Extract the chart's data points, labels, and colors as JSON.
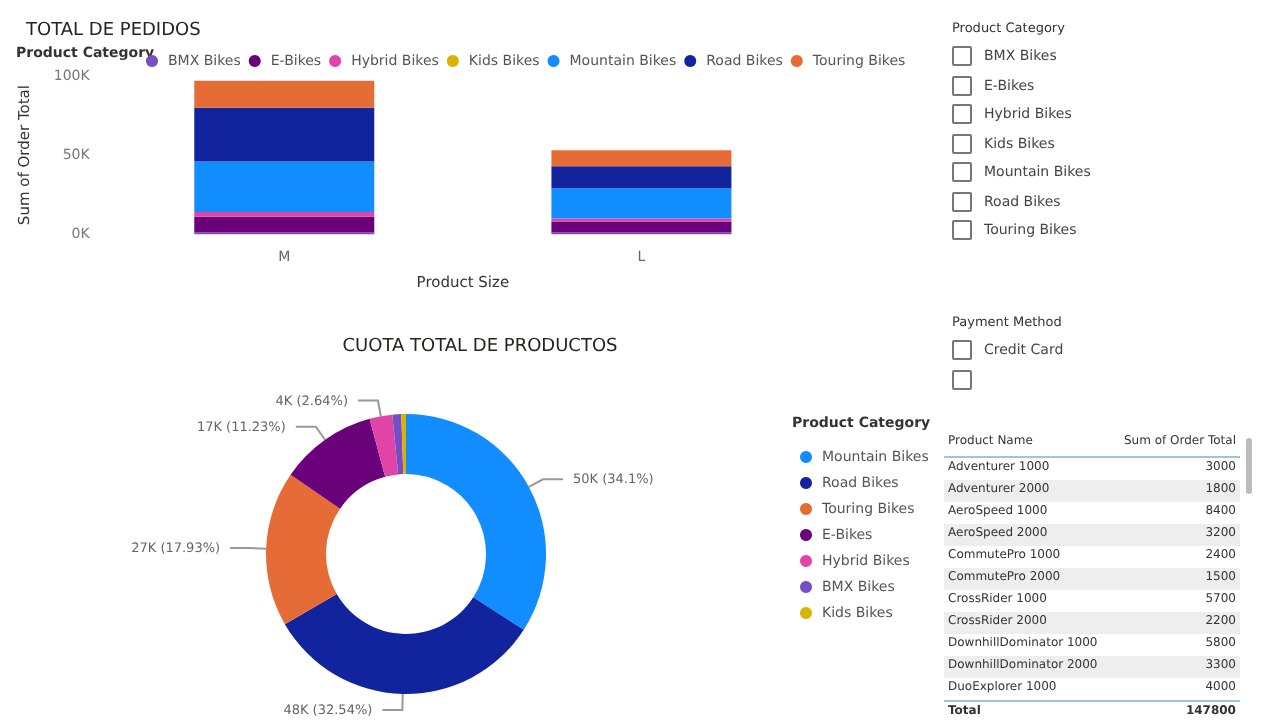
{
  "chart_data": [
    {
      "type": "bar",
      "title": "TOTAL DE PEDIDOS",
      "legend_title": "Product Category",
      "xlabel": "Product Size",
      "ylabel": "Sum of Order Total",
      "categories": [
        "M",
        "L"
      ],
      "stacked": true,
      "ylim": [
        0,
        100000
      ],
      "yticks": [
        {
          "value": 0,
          "label": "0K"
        },
        {
          "value": 50000,
          "label": "50K"
        },
        {
          "value": 100000,
          "label": "100K"
        }
      ],
      "grid": false,
      "legend": "top",
      "series": [
        {
          "name": "BMX Bikes",
          "color": "#744ec2",
          "values": [
            1000,
            1000
          ]
        },
        {
          "name": "E-Bikes",
          "color": "#6b007b",
          "values": [
            10000,
            7000
          ]
        },
        {
          "name": "Hybrid Bikes",
          "color": "#e044a7",
          "values": [
            3000,
            2000
          ]
        },
        {
          "name": "Kids Bikes",
          "color": "#d9b300",
          "values": [
            0,
            0
          ]
        },
        {
          "name": "Mountain Bikes",
          "color": "#118dff",
          "values": [
            32000,
            19000
          ]
        },
        {
          "name": "Road Bikes",
          "color": "#12239e",
          "values": [
            34000,
            14000
          ]
        },
        {
          "name": "Touring Bikes",
          "color": "#e66c37",
          "values": [
            17000,
            10000
          ]
        }
      ]
    },
    {
      "type": "donut",
      "title": "CUOTA TOTAL DE PRODUCTOS",
      "legend_title": "Product Category",
      "legend": "right",
      "categories": [
        "Mountain Bikes",
        "Road Bikes",
        "Touring Bikes",
        "E-Bikes",
        "Hybrid Bikes",
        "BMX Bikes",
        "Kids Bikes"
      ],
      "values": [
        50400,
        48100,
        26500,
        16600,
        3900,
        1500,
        800
      ],
      "value_labels": [
        "50K (34.1%)",
        "48K (32.54%)",
        "27K (17.93%)",
        "17K (11.23%)",
        "4K (2.64%)",
        null,
        null
      ],
      "colors": [
        "#118dff",
        "#12239e",
        "#e66c37",
        "#6b007b",
        "#e044a7",
        "#744ec2",
        "#d9b300"
      ]
    },
    {
      "type": "other",
      "xlabel": "Product Name",
      "ylabel": "Sum of Order Total",
      "categories": [
        "Adventurer 1000",
        "Adventurer 2000",
        "AeroSpeed 1000",
        "AeroSpeed 2000",
        "CommutePro 1000",
        "CommutePro 2000",
        "CrossRider 1000",
        "CrossRider 2000",
        "DownhillDominator 1000",
        "DownhillDominator 2000",
        "DuoExplorer 1000"
      ],
      "values": [
        3000,
        1800,
        8400,
        3200,
        2400,
        1500,
        5700,
        2200,
        5800,
        3300,
        4000
      ],
      "data_labels": true,
      "annotations": [
        "Total",
        "147800"
      ]
    },
    {
      "type": "other",
      "title": "Product Category",
      "categories": [
        "BMX Bikes",
        "E-Bikes",
        "Hybrid Bikes",
        "Kids Bikes",
        "Mountain Bikes",
        "Road Bikes",
        "Touring Bikes"
      ]
    },
    {
      "type": "other",
      "title": "Payment Method",
      "categories": [
        "Credit Card",
        null
      ]
    }
  ]
}
